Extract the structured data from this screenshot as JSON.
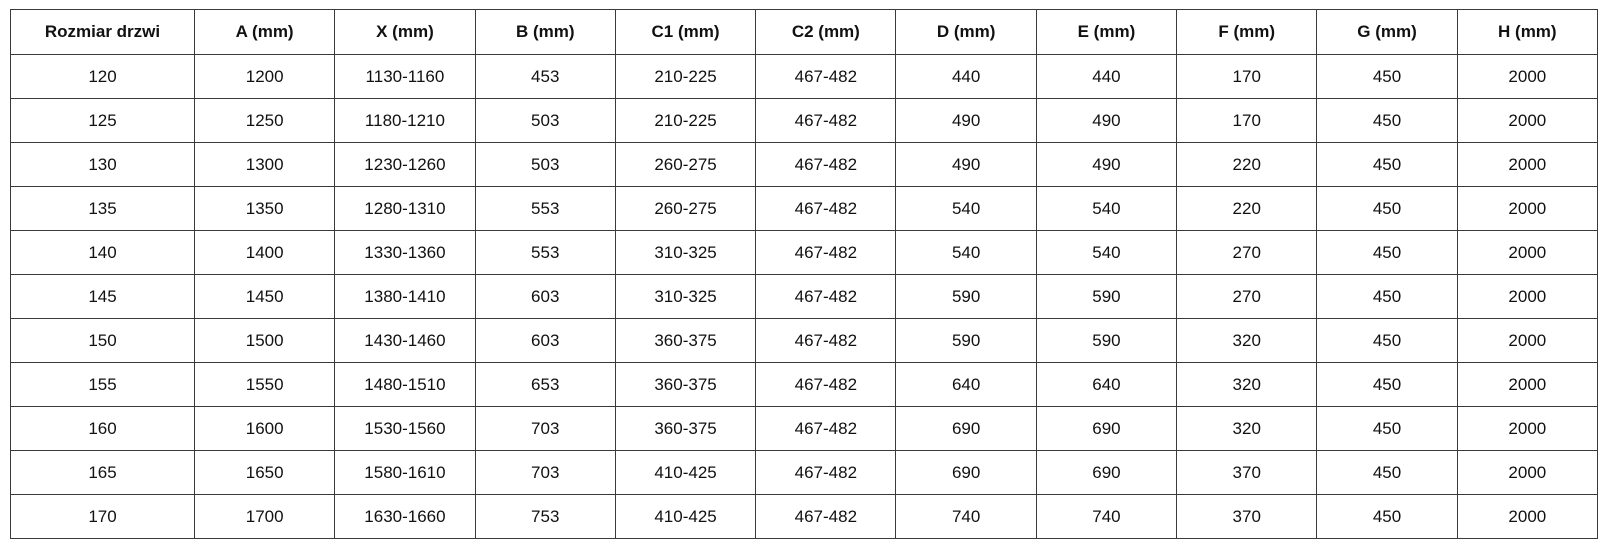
{
  "table": {
    "headers": [
      "Rozmiar drzwi",
      "A (mm)",
      "X (mm)",
      "B (mm)",
      "C1 (mm)",
      "C2 (mm)",
      "D (mm)",
      "E (mm)",
      "F (mm)",
      "G (mm)",
      "H (mm)"
    ],
    "rows": [
      [
        "120",
        "1200",
        "1130-1160",
        "453",
        "210-225",
        "467-482",
        "440",
        "440",
        "170",
        "450",
        "2000"
      ],
      [
        "125",
        "1250",
        "1180-1210",
        "503",
        "210-225",
        "467-482",
        "490",
        "490",
        "170",
        "450",
        "2000"
      ],
      [
        "130",
        "1300",
        "1230-1260",
        "503",
        "260-275",
        "467-482",
        "490",
        "490",
        "220",
        "450",
        "2000"
      ],
      [
        "135",
        "1350",
        "1280-1310",
        "553",
        "260-275",
        "467-482",
        "540",
        "540",
        "220",
        "450",
        "2000"
      ],
      [
        "140",
        "1400",
        "1330-1360",
        "553",
        "310-325",
        "467-482",
        "540",
        "540",
        "270",
        "450",
        "2000"
      ],
      [
        "145",
        "1450",
        "1380-1410",
        "603",
        "310-325",
        "467-482",
        "590",
        "590",
        "270",
        "450",
        "2000"
      ],
      [
        "150",
        "1500",
        "1430-1460",
        "603",
        "360-375",
        "467-482",
        "590",
        "590",
        "320",
        "450",
        "2000"
      ],
      [
        "155",
        "1550",
        "1480-1510",
        "653",
        "360-375",
        "467-482",
        "640",
        "640",
        "320",
        "450",
        "2000"
      ],
      [
        "160",
        "1600",
        "1530-1560",
        "703",
        "360-375",
        "467-482",
        "690",
        "690",
        "320",
        "450",
        "2000"
      ],
      [
        "165",
        "1650",
        "1580-1610",
        "703",
        "410-425",
        "467-482",
        "690",
        "690",
        "370",
        "450",
        "2000"
      ],
      [
        "170",
        "1700",
        "1630-1660",
        "753",
        "410-425",
        "467-482",
        "740",
        "740",
        "370",
        "450",
        "2000"
      ]
    ]
  }
}
